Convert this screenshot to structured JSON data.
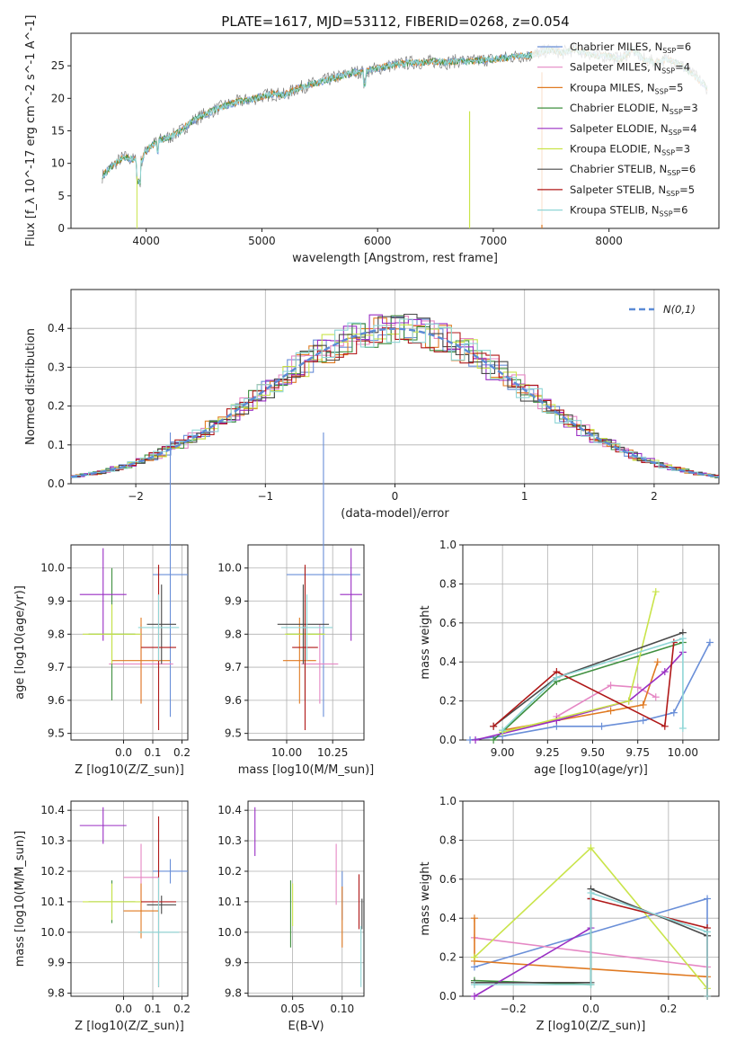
{
  "chart_data": [
    {
      "id": "spectrum",
      "type": "line",
      "title": "PLATE=1617, MJD=53112, FIBERID=0268, z=0.054",
      "xlabel": "wavelength [Angstrom, rest frame]",
      "ylabel": "Flux [f_λ 10^-17 erg cm^-2 s^-1 A^-1]",
      "xlim": [
        3350,
        8950
      ],
      "ylim": [
        0,
        30
      ],
      "xticks": [
        4000,
        5000,
        6000,
        7000,
        8000
      ],
      "yticks": [
        0,
        5,
        10,
        15,
        20,
        25
      ],
      "spectrum_points": [
        [
          3620,
          8
        ],
        [
          3700,
          9.5
        ],
        [
          3800,
          11
        ],
        [
          3900,
          10.5
        ],
        [
          3950,
          10
        ],
        [
          4000,
          12
        ],
        [
          4100,
          13.5
        ],
        [
          4200,
          14
        ],
        [
          4300,
          15
        ],
        [
          4400,
          16.5
        ],
        [
          4500,
          17.5
        ],
        [
          4600,
          18.3
        ],
        [
          4700,
          19
        ],
        [
          4800,
          19.5
        ],
        [
          4900,
          19.8
        ],
        [
          5000,
          20.3
        ],
        [
          5100,
          20.7
        ],
        [
          5200,
          20.5
        ],
        [
          5300,
          21.5
        ],
        [
          5400,
          22
        ],
        [
          5500,
          22.5
        ],
        [
          5600,
          23
        ],
        [
          5700,
          23.5
        ],
        [
          5800,
          24
        ],
        [
          5900,
          24.2
        ],
        [
          6000,
          24.6
        ],
        [
          6100,
          25
        ],
        [
          6200,
          25.3
        ],
        [
          6300,
          25.5
        ],
        [
          6400,
          25.5
        ],
        [
          6500,
          25.7
        ],
        [
          6600,
          25.5
        ],
        [
          6700,
          25.8
        ],
        [
          6800,
          25.6
        ],
        [
          6900,
          25.9
        ],
        [
          7000,
          26
        ],
        [
          7100,
          26.2
        ],
        [
          7200,
          26.5
        ],
        [
          7300,
          26.5
        ],
        [
          7400,
          27
        ],
        [
          7500,
          27.5
        ],
        [
          7600,
          27
        ],
        [
          7700,
          27.5
        ],
        [
          7800,
          27
        ],
        [
          7900,
          26.5
        ],
        [
          8000,
          26.5
        ],
        [
          8100,
          26
        ],
        [
          8200,
          27.5
        ],
        [
          8300,
          26
        ],
        [
          8400,
          25.5
        ],
        [
          8500,
          26
        ],
        [
          8600,
          25.5
        ],
        [
          8700,
          24
        ],
        [
          8800,
          22.5
        ],
        [
          8850,
          21.5
        ]
      ],
      "legend_location": "upper right",
      "models": [
        {
          "label": "Chabrier MILES, N",
          "sub": "SSP",
          "n": "=6",
          "color": "#6a8fd8"
        },
        {
          "label": "Salpeter MILES, N",
          "sub": "SSP",
          "n": "=4",
          "color": "#e587c4"
        },
        {
          "label": "Kroupa MILES, N",
          "sub": "SSP",
          "n": "=5",
          "color": "#e07a22"
        },
        {
          "label": "Chabrier ELODIE, N",
          "sub": "SSP",
          "n": "=3",
          "color": "#3f8f3f"
        },
        {
          "label": "Salpeter ELODIE, N",
          "sub": "SSP",
          "n": "=4",
          "color": "#9a2fc4"
        },
        {
          "label": "Kroupa ELODIE, N",
          "sub": "SSP",
          "n": "=3",
          "color": "#c9e44a"
        },
        {
          "label": "Chabrier STELIB, N",
          "sub": "SSP",
          "n": "=6",
          "color": "#4a4a4a"
        },
        {
          "label": "Salpeter STELIB, N",
          "sub": "SSP",
          "n": "=5",
          "color": "#b01818"
        },
        {
          "label": "Kroupa STELIB, N",
          "sub": "SSP",
          "n": "=6",
          "color": "#8fd6d6"
        }
      ]
    },
    {
      "id": "residuals",
      "type": "histogram",
      "xlabel": "(data-model)/error",
      "ylabel": "Normed distribution",
      "xlim": [
        -2.5,
        2.5
      ],
      "ylim": [
        0,
        0.5
      ],
      "xticks": [
        -2,
        -1,
        0,
        1,
        2
      ],
      "yticks": [
        0.0,
        0.1,
        0.2,
        0.3,
        0.4
      ],
      "legend_entry": "N(0,1)",
      "legend_location": "upper right",
      "reference_curve": "normal pdf, mean 0, sigma 1"
    },
    {
      "id": "age_vs_Z",
      "type": "errorbar",
      "xlabel": "Z [log10(Z/Z_sun)]",
      "ylabel": "age [log10(age/yr)]",
      "xlim": [
        -0.18,
        0.22
      ],
      "ylim": [
        9.48,
        10.07
      ],
      "xticks": [
        -0.0,
        0.1,
        0.2
      ],
      "yticks": [
        9.5,
        9.6,
        9.7,
        9.8,
        9.9,
        10.0
      ],
      "points": [
        {
          "model": 0,
          "x": 0.16,
          "xerr": 0.06,
          "y": 9.98,
          "yerr": 0.43
        },
        {
          "model": 1,
          "x": 0.06,
          "xerr": 0.11,
          "y": 9.71,
          "yerr": 0.12
        },
        {
          "model": 2,
          "x": 0.06,
          "xerr": 0.1,
          "y": 9.72,
          "yerr": 0.13
        },
        {
          "model": 3,
          "x": -0.04,
          "xerr": 0.08,
          "y": 9.8,
          "yerr": 0.2
        },
        {
          "model": 4,
          "x": -0.07,
          "xerr": 0.08,
          "y": 9.92,
          "yerr": 0.14
        },
        {
          "model": 5,
          "x": -0.04,
          "xerr": 0.1,
          "y": 9.8,
          "yerr": 0.09
        },
        {
          "model": 6,
          "x": 0.13,
          "xerr": 0.05,
          "y": 9.83,
          "yerr": 0.12
        },
        {
          "model": 7,
          "x": 0.12,
          "xerr": 0.06,
          "y": 9.76,
          "yerr": 0.25
        },
        {
          "model": 8,
          "x": 0.12,
          "xerr": 0.07,
          "y": 9.82,
          "yerr": 0.1
        }
      ]
    },
    {
      "id": "age_vs_mass",
      "type": "errorbar",
      "xlabel": "mass [log10(M/M_sun)]",
      "ylabel": "",
      "xlim": [
        9.79,
        10.42
      ],
      "ylim": [
        9.48,
        10.07
      ],
      "xticks": [
        10.0,
        10.25
      ],
      "yticks": [
        9.5,
        9.6,
        9.7,
        9.8,
        9.9,
        10.0
      ],
      "points": [
        {
          "model": 0,
          "x": 10.2,
          "xerr": 0.2,
          "y": 9.98,
          "yerr": 0.43
        },
        {
          "model": 1,
          "x": 10.18,
          "xerr": 0.1,
          "y": 9.71,
          "yerr": 0.12
        },
        {
          "model": 2,
          "x": 10.07,
          "xerr": 0.09,
          "y": 9.72,
          "yerr": 0.13
        },
        {
          "model": 3,
          "x": 10.1,
          "xerr": 0.1,
          "y": 9.8,
          "yerr": 0.2
        },
        {
          "model": 4,
          "x": 10.35,
          "xerr": 0.06,
          "y": 9.92,
          "yerr": 0.14
        },
        {
          "model": 5,
          "x": 10.1,
          "xerr": 0.11,
          "y": 9.8,
          "yerr": 0.09
        },
        {
          "model": 6,
          "x": 10.09,
          "xerr": 0.14,
          "y": 9.83,
          "yerr": 0.12
        },
        {
          "model": 7,
          "x": 10.1,
          "xerr": 0.07,
          "y": 9.76,
          "yerr": 0.25
        },
        {
          "model": 8,
          "x": 10.11,
          "xerr": 0.14,
          "y": 9.82,
          "yerr": 0.1
        }
      ]
    },
    {
      "id": "weight_vs_age",
      "type": "line",
      "xlabel": "age [log10(age/yr)]",
      "ylabel": "mass weight",
      "xlim": [
        8.78,
        10.2
      ],
      "ylim": [
        0,
        1.0
      ],
      "xticks": [
        9.0,
        9.25,
        9.5,
        9.75,
        10.0
      ],
      "yticks": [
        0.0,
        0.2,
        0.4,
        0.6,
        0.8,
        1.0
      ],
      "series": [
        {
          "model": 0,
          "points": [
            [
              8.82,
              0.0
            ],
            [
              9.0,
              0.02
            ],
            [
              9.3,
              0.07
            ],
            [
              9.55,
              0.07
            ],
            [
              9.78,
              0.1
            ],
            [
              9.95,
              0.14
            ],
            [
              10.15,
              0.5
            ]
          ]
        },
        {
          "model": 1,
          "points": [
            [
              9.3,
              0.12
            ],
            [
              9.6,
              0.28
            ],
            [
              9.75,
              0.27
            ],
            [
              9.85,
              0.22
            ]
          ]
        },
        {
          "model": 2,
          "points": [
            [
              9.0,
              0.05
            ],
            [
              9.3,
              0.1
            ],
            [
              9.6,
              0.15
            ],
            [
              9.78,
              0.18
            ],
            [
              9.86,
              0.4
            ]
          ]
        },
        {
          "model": 3,
          "points": [
            [
              8.95,
              0.0
            ],
            [
              9.3,
              0.3
            ],
            [
              10.0,
              0.5
            ]
          ]
        },
        {
          "model": 4,
          "points": [
            [
              8.85,
              0.0
            ],
            [
              9.3,
              0.1
            ],
            [
              9.7,
              0.2
            ],
            [
              9.9,
              0.35
            ],
            [
              10.0,
              0.45
            ]
          ]
        },
        {
          "model": 5,
          "points": [
            [
              9.0,
              0.04
            ],
            [
              9.7,
              0.2
            ],
            [
              9.85,
              0.76
            ]
          ]
        },
        {
          "model": 6,
          "points": [
            [
              8.95,
              0.07
            ],
            [
              9.3,
              0.32
            ],
            [
              10.0,
              0.55
            ]
          ]
        },
        {
          "model": 7,
          "points": [
            [
              8.95,
              0.07
            ],
            [
              9.3,
              0.35
            ],
            [
              9.9,
              0.07
            ],
            [
              9.95,
              0.5
            ]
          ]
        },
        {
          "model": 8,
          "points": [
            [
              9.0,
              0.05
            ],
            [
              9.3,
              0.32
            ],
            [
              10.0,
              0.52
            ],
            [
              10.0,
              0.06
            ]
          ]
        }
      ]
    },
    {
      "id": "mass_vs_Z",
      "type": "errorbar",
      "xlabel": "Z [log10(Z/Z_sun)]",
      "ylabel": "mass [log10(M/M_sun)]",
      "xlim": [
        -0.18,
        0.22
      ],
      "ylim": [
        9.79,
        10.43
      ],
      "xticks": [
        -0.0,
        0.1,
        0.2
      ],
      "yticks": [
        9.8,
        9.9,
        10.0,
        10.1,
        10.2,
        10.3,
        10.4
      ],
      "points": [
        {
          "model": 0,
          "x": 0.16,
          "xerr": 0.06,
          "y": 10.2,
          "yerr": 0.04
        },
        {
          "model": 1,
          "x": 0.06,
          "xerr": 0.06,
          "y": 10.18,
          "yerr": 0.11
        },
        {
          "model": 2,
          "x": 0.06,
          "xerr": 0.06,
          "y": 10.07,
          "yerr": 0.09
        },
        {
          "model": 3,
          "x": -0.04,
          "xerr": 0.08,
          "y": 10.1,
          "yerr": 0.07
        },
        {
          "model": 4,
          "x": -0.07,
          "xerr": 0.08,
          "y": 10.35,
          "yerr": 0.06
        },
        {
          "model": 5,
          "x": -0.04,
          "xerr": 0.1,
          "y": 10.1,
          "yerr": 0.06
        },
        {
          "model": 6,
          "x": 0.13,
          "xerr": 0.05,
          "y": 10.09,
          "yerr": 0.03
        },
        {
          "model": 7,
          "x": 0.12,
          "xerr": 0.06,
          "y": 10.1,
          "yerr": 0.28
        },
        {
          "model": 8,
          "x": 0.12,
          "xerr": 0.07,
          "y": 10.0,
          "yerr": 0.18
        }
      ]
    },
    {
      "id": "mass_vs_ebv",
      "type": "errorbar",
      "xlabel": "E(B-V)",
      "ylabel": "",
      "xlim": [
        0.005,
        0.122
      ],
      "ylim": [
        9.79,
        10.43
      ],
      "xticks": [
        0.05,
        0.1
      ],
      "yticks": [
        9.8,
        9.9,
        10.0,
        10.1,
        10.2,
        10.3,
        10.4
      ],
      "points": [
        {
          "model": 0,
          "x": 0.1,
          "xerr": 0.0,
          "y": 10.12,
          "yerr": 0.08
        },
        {
          "model": 1,
          "x": 0.094,
          "xerr": 0.0,
          "y": 10.19,
          "yerr": 0.1
        },
        {
          "model": 2,
          "x": 0.1,
          "xerr": 0.0,
          "y": 10.05,
          "yerr": 0.1
        },
        {
          "model": 3,
          "x": 0.048,
          "xerr": 0.0,
          "y": 10.06,
          "yerr": 0.11
        },
        {
          "model": 4,
          "x": 0.012,
          "xerr": 0.0,
          "y": 10.33,
          "yerr": 0.08
        },
        {
          "model": 5,
          "x": 0.05,
          "xerr": 0.0,
          "y": 10.09,
          "yerr": 0.07
        },
        {
          "model": 6,
          "x": 0.12,
          "xerr": 0.0,
          "y": 10.06,
          "yerr": 0.05
        },
        {
          "model": 7,
          "x": 0.117,
          "xerr": 0.0,
          "y": 10.1,
          "yerr": 0.09
        },
        {
          "model": 8,
          "x": 0.119,
          "xerr": 0.0,
          "y": 9.92,
          "yerr": 0.1
        }
      ]
    },
    {
      "id": "weight_vs_Z",
      "type": "line",
      "xlabel": "Z [log10(Z/Z_sun)]",
      "ylabel": "mass weight",
      "xlim": [
        -0.33,
        0.33
      ],
      "ylim": [
        0,
        1.0
      ],
      "xticks": [
        -0.2,
        0.0,
        0.2
      ],
      "yticks": [
        0.0,
        0.2,
        0.4,
        0.6,
        0.8,
        1.0
      ],
      "series": [
        {
          "model": 0,
          "points": [
            [
              -0.3,
              0.15
            ],
            [
              0.3,
              0.5
            ],
            [
              0.3,
              0.0
            ]
          ]
        },
        {
          "model": 1,
          "points": [
            [
              -0.3,
              0.3
            ],
            [
              0.3,
              0.15
            ],
            [
              0.3,
              0.0
            ]
          ]
        },
        {
          "model": 2,
          "points": [
            [
              -0.3,
              0.4
            ],
            [
              -0.3,
              0.18
            ],
            [
              0.3,
              0.1
            ],
            [
              0.3,
              0.0
            ]
          ]
        },
        {
          "model": 3,
          "points": [
            [
              -0.3,
              0.08
            ],
            [
              0.0,
              0.06
            ],
            [
              0.0,
              0.5
            ]
          ]
        },
        {
          "model": 4,
          "points": [
            [
              -0.3,
              0.0
            ],
            [
              0.0,
              0.35
            ],
            [
              0.0,
              0.5
            ]
          ]
        },
        {
          "model": 5,
          "points": [
            [
              -0.3,
              0.2
            ],
            [
              0.0,
              0.76
            ],
            [
              0.3,
              0.04
            ]
          ]
        },
        {
          "model": 6,
          "points": [
            [
              -0.3,
              0.07
            ],
            [
              0.0,
              0.07
            ],
            [
              0.0,
              0.55
            ],
            [
              0.3,
              0.31
            ]
          ]
        },
        {
          "model": 7,
          "points": [
            [
              0.0,
              0.5
            ],
            [
              0.3,
              0.35
            ],
            [
              0.3,
              0.0
            ]
          ]
        },
        {
          "model": 8,
          "points": [
            [
              -0.3,
              0.06
            ],
            [
              0.0,
              0.06
            ],
            [
              0.0,
              0.53
            ],
            [
              0.3,
              0.33
            ],
            [
              0.3,
              0.0
            ]
          ]
        }
      ]
    }
  ]
}
